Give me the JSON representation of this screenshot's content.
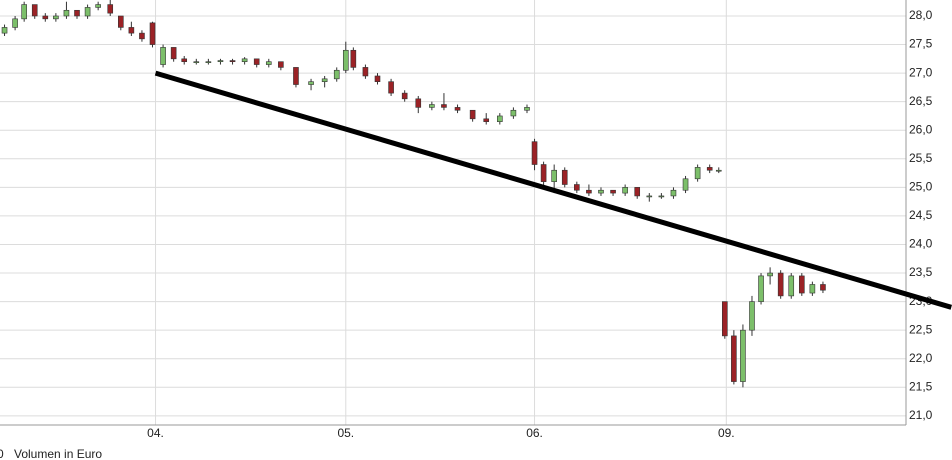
{
  "chart_data": {
    "type": "candlestick",
    "x": [
      0.3,
      1.0,
      1.6,
      2.3,
      3.0,
      3.7,
      4.4,
      5.1,
      5.8,
      6.5,
      7.3,
      8.0,
      8.7,
      9.4,
      10.1,
      10.8,
      11.5,
      12.2,
      13.0,
      13.8,
      14.6,
      15.4,
      16.2,
      17.0,
      17.8,
      18.6,
      19.6,
      20.6,
      21.5,
      22.3,
      22.9,
      23.4,
      24.2,
      25.0,
      25.9,
      26.8,
      27.7,
      28.6,
      29.4,
      30.3,
      31.3,
      32.2,
      33.1,
      34.0,
      34.9,
      35.4,
      36.0,
      36.7,
      37.4,
      38.2,
      39.0,
      39.8,
      40.6,
      41.4,
      42.2,
      43.0,
      43.8,
      44.6,
      45.4,
      46.2,
      47.0,
      47.6,
      48.0,
      48.6,
      49.2,
      49.8,
      50.4,
      51.0,
      51.7,
      52.4,
      53.1,
      53.8,
      54.5
    ],
    "open": [
      27.7,
      27.8,
      27.95,
      28.2,
      28.0,
      27.95,
      28.0,
      28.1,
      28.0,
      28.15,
      28.2,
      28.0,
      27.8,
      27.7,
      27.88,
      27.15,
      27.45,
      27.25,
      27.2,
      27.2,
      27.2,
      27.22,
      27.2,
      27.25,
      27.15,
      27.2,
      27.1,
      26.8,
      26.85,
      26.9,
      27.05,
      27.4,
      27.1,
      26.95,
      26.85,
      26.65,
      26.55,
      26.4,
      26.45,
      26.4,
      26.35,
      26.2,
      26.15,
      26.25,
      26.35,
      25.8,
      25.4,
      25.1,
      25.3,
      25.05,
      24.95,
      24.9,
      24.95,
      24.9,
      25.0,
      24.85,
      24.85,
      24.85,
      24.95,
      25.15,
      25.35,
      25.3,
      23.0,
      22.4,
      21.6,
      22.5,
      23.0,
      23.45,
      23.5,
      23.1,
      23.45,
      23.15,
      23.3
    ],
    "high": [
      27.85,
      28.0,
      28.25,
      28.2,
      28.05,
      28.05,
      28.25,
      28.1,
      28.2,
      28.25,
      28.3,
      28.0,
      27.9,
      27.75,
      27.9,
      27.5,
      27.45,
      27.3,
      27.25,
      27.25,
      27.25,
      27.25,
      27.28,
      27.25,
      27.25,
      27.2,
      27.1,
      26.9,
      26.95,
      27.1,
      27.55,
      27.45,
      27.15,
      27.0,
      26.9,
      26.7,
      26.6,
      26.5,
      26.65,
      26.45,
      26.35,
      26.3,
      26.3,
      26.4,
      26.45,
      25.85,
      25.45,
      25.4,
      25.35,
      25.1,
      25.05,
      25.0,
      24.95,
      25.05,
      25.0,
      24.9,
      24.9,
      25.0,
      25.2,
      25.4,
      25.4,
      25.35,
      23.0,
      22.5,
      22.6,
      23.1,
      23.5,
      23.6,
      23.55,
      23.5,
      23.5,
      23.35,
      23.35
    ],
    "low": [
      27.65,
      27.75,
      27.9,
      27.95,
      27.9,
      27.9,
      27.95,
      27.95,
      27.95,
      28.1,
      28.0,
      27.75,
      27.65,
      27.55,
      27.45,
      27.1,
      27.2,
      27.15,
      27.15,
      27.15,
      27.15,
      27.15,
      27.15,
      27.1,
      27.1,
      27.05,
      26.75,
      26.7,
      26.75,
      26.85,
      27.0,
      27.05,
      26.9,
      26.8,
      26.6,
      26.5,
      26.3,
      26.35,
      26.35,
      26.3,
      26.15,
      26.1,
      26.1,
      26.2,
      26.3,
      25.3,
      25.0,
      24.9,
      25.0,
      24.9,
      24.85,
      24.85,
      24.85,
      24.85,
      24.8,
      24.75,
      24.8,
      24.8,
      24.9,
      25.1,
      25.25,
      25.25,
      22.35,
      21.55,
      21.5,
      22.4,
      22.95,
      23.3,
      23.05,
      23.05,
      23.1,
      23.1,
      23.15
    ],
    "close": [
      27.8,
      27.95,
      28.2,
      28.0,
      27.95,
      28.0,
      28.1,
      28.0,
      28.15,
      28.2,
      28.05,
      27.8,
      27.7,
      27.6,
      27.5,
      27.45,
      27.25,
      27.2,
      27.2,
      27.2,
      27.22,
      27.2,
      27.25,
      27.15,
      27.2,
      27.1,
      26.8,
      26.85,
      26.9,
      27.05,
      27.4,
      27.1,
      26.95,
      26.85,
      26.65,
      26.55,
      26.4,
      26.45,
      26.4,
      26.35,
      26.2,
      26.15,
      26.25,
      26.35,
      26.4,
      25.4,
      25.1,
      25.3,
      25.05,
      24.95,
      24.9,
      24.95,
      24.9,
      25.0,
      24.85,
      24.85,
      24.85,
      24.95,
      25.15,
      25.35,
      25.3,
      25.3,
      22.4,
      21.6,
      22.5,
      23.0,
      23.45,
      23.5,
      23.1,
      23.45,
      23.15,
      23.3,
      23.2
    ],
    "up_color": "#7cbf6a",
    "down_color": "#9b2226",
    "xlim": [
      0,
      60
    ],
    "xticks": [
      {
        "value": 10.3,
        "label": "04."
      },
      {
        "value": 22.9,
        "label": "05."
      },
      {
        "value": 35.4,
        "label": "06."
      },
      {
        "value": 48.1,
        "label": "09."
      }
    ],
    "ylim": [
      20.84,
      28.28
    ],
    "yticks": [
      {
        "value": 21,
        "label": "21,0"
      },
      {
        "value": 21.5,
        "label": "21,5"
      },
      {
        "value": 22,
        "label": "22,0"
      },
      {
        "value": 22.5,
        "label": "22,5"
      },
      {
        "value": 23,
        "label": "23,0"
      },
      {
        "value": 23.5,
        "label": "23,5"
      },
      {
        "value": 24,
        "label": "24,0"
      },
      {
        "value": 24.5,
        "label": "24,5"
      },
      {
        "value": 25,
        "label": "25,0"
      },
      {
        "value": 25.5,
        "label": "25,5"
      },
      {
        "value": 26,
        "label": "26,0"
      },
      {
        "value": 26.5,
        "label": "26,5"
      },
      {
        "value": 27,
        "label": "27,0"
      },
      {
        "value": 27.5,
        "label": "27,5"
      },
      {
        "value": 28,
        "label": "28,0"
      }
    ],
    "grid": true,
    "trendline": {
      "x": [
        10.3,
        63.0
      ],
      "y": [
        27.0,
        22.9
      ],
      "color": "#000000"
    },
    "volume_tick": "0",
    "volume_label": "Volumen in Euro"
  }
}
